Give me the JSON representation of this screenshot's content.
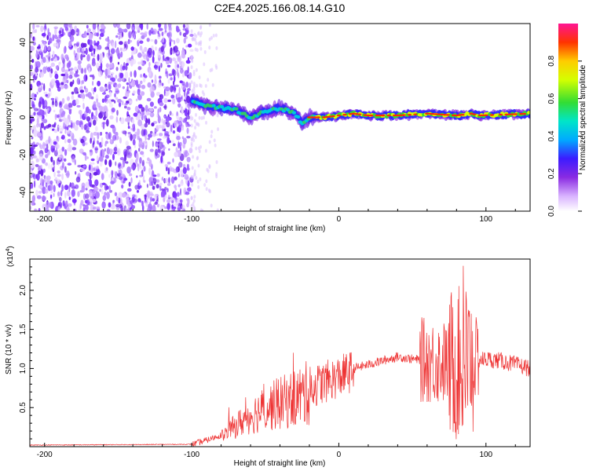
{
  "title": "C2E4.2025.166.08.14.G10",
  "chart_data": [
    {
      "type": "heatmap",
      "xlabel": "Height of straight line (km)",
      "ylabel": "Frequency (Hz)",
      "xlim": [
        -210,
        130
      ],
      "ylim": [
        -50,
        50
      ],
      "xticks": [
        -200,
        -100,
        0,
        100
      ],
      "yticks": [
        -40,
        -20,
        0,
        20,
        40
      ],
      "colorbar": {
        "label": "Normalized spectral amplitude",
        "range": [
          0,
          1
        ],
        "ticks": [
          0.0,
          0.2,
          0.4,
          0.6,
          0.8
        ]
      },
      "ridge": {
        "description_points": [
          [
            -100,
            9
          ],
          [
            -90,
            6
          ],
          [
            -80,
            5
          ],
          [
            -70,
            4
          ],
          [
            -60,
            0
          ],
          [
            -50,
            3
          ],
          [
            -40,
            5
          ],
          [
            -30,
            2
          ],
          [
            -25,
            -3
          ],
          [
            -20,
            0
          ],
          [
            -10,
            0
          ],
          [
            0,
            1
          ],
          [
            10,
            2
          ],
          [
            20,
            1
          ],
          [
            40,
            1
          ],
          [
            60,
            2
          ],
          [
            80,
            1
          ],
          [
            90,
            2
          ],
          [
            95,
            1
          ],
          [
            130,
            2
          ]
        ]
      }
    },
    {
      "type": "line",
      "xlabel": "Height of straight line (km)",
      "ylabel": "SNR (10 * v/v)",
      "y_multiplier": "(x10^4)",
      "xlim": [
        -210,
        130
      ],
      "ylim": [
        0,
        2.4
      ],
      "xticks": [
        -200,
        -100,
        0,
        100
      ],
      "yticks": [
        0.5,
        1.0,
        1.5,
        2.0
      ],
      "series": [
        {
          "color": "#ee3333",
          "envelope": [
            [
              -210,
              0.02
            ],
            [
              -100,
              0.03
            ],
            [
              -90,
              0.08
            ],
            [
              -80,
              0.15
            ],
            [
              -70,
              0.3
            ],
            [
              -60,
              0.45
            ],
            [
              -50,
              0.55
            ],
            [
              -40,
              0.62
            ],
            [
              -30,
              0.7
            ],
            [
              -20,
              0.78
            ],
            [
              -10,
              0.85
            ],
            [
              0,
              0.92
            ],
            [
              10,
              1.0
            ],
            [
              20,
              1.05
            ],
            [
              30,
              1.1
            ],
            [
              40,
              1.15
            ],
            [
              50,
              1.12
            ],
            [
              60,
              1.1
            ],
            [
              70,
              1.08
            ],
            [
              80,
              1.05
            ],
            [
              90,
              1.1
            ],
            [
              100,
              1.12
            ],
            [
              110,
              1.1
            ],
            [
              120,
              1.05
            ],
            [
              130,
              1.0
            ]
          ]
        }
      ]
    }
  ]
}
